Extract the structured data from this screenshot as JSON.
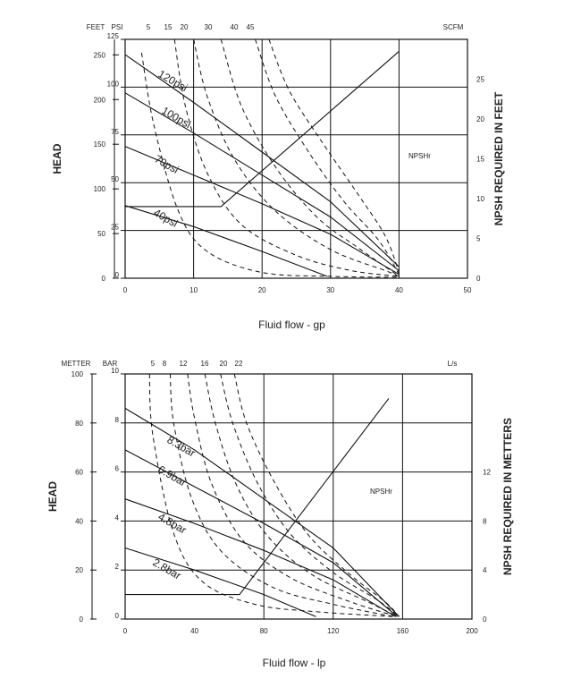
{
  "chart_data": [
    {
      "type": "line",
      "xlabel": "Fluid flow - gp",
      "ylabel_left": "HEAD",
      "ylabel_right": "NPSH REQUIRED IN FEET",
      "x_ticks": [
        "0",
        "10",
        "20",
        "30",
        "40",
        "50"
      ],
      "xlim": [
        0,
        50
      ],
      "ylim_psi": [
        0,
        125
      ],
      "head_unit": "FEET",
      "pressure_unit": "PSI",
      "air_unit": "SCFM",
      "head_ticks": [
        "250",
        "200",
        "150",
        "100",
        "50",
        "0"
      ],
      "head_values": [
        250,
        200,
        150,
        100,
        50,
        0
      ],
      "psi_ticks": [
        "125",
        "100",
        "75",
        "50",
        "25",
        "0"
      ],
      "psi_values": [
        125,
        100,
        75,
        50,
        25,
        0
      ],
      "npsh_ticks": [
        "25",
        "20",
        "15",
        "10",
        "5",
        "0"
      ],
      "npsh_values": [
        25,
        20,
        15,
        10,
        5,
        0
      ],
      "npsh_range": [
        0,
        30
      ],
      "air_ticks": [
        "5",
        "15",
        "20",
        "30",
        "40",
        "45"
      ],
      "npsh_label": "NPSHr",
      "series": [
        {
          "name": "120psi",
          "x": [
            0,
            10,
            20,
            30,
            40
          ],
          "y": [
            117,
            92,
            66,
            40,
            6
          ]
        },
        {
          "name": "100psi",
          "x": [
            0,
            10,
            20,
            30,
            40
          ],
          "y": [
            97,
            76,
            54,
            32,
            4
          ]
        },
        {
          "name": "70psi",
          "x": [
            0,
            10,
            20,
            30,
            40
          ],
          "y": [
            69,
            54,
            39,
            23,
            2
          ]
        },
        {
          "name": "40psi",
          "x": [
            0,
            10,
            20,
            29.5
          ],
          "y": [
            38,
            27,
            14,
            1
          ]
        }
      ],
      "air_curves": [
        {
          "x": [
            2.4,
            4.2,
            7.8,
            12,
            20,
            30,
            40
          ],
          "y": [
            118,
            80,
            35,
            14,
            3,
            1,
            0.5
          ]
        },
        {
          "x": [
            7.2,
            8.8,
            12,
            17,
            25,
            33,
            40
          ],
          "y": [
            125,
            90,
            55,
            28,
            12,
            4,
            1
          ]
        },
        {
          "x": [
            10,
            12,
            16,
            22,
            30,
            38,
            40
          ],
          "y": [
            125,
            95,
            62,
            35,
            15,
            4,
            1
          ]
        },
        {
          "x": [
            14,
            17,
            22,
            28,
            34,
            40
          ],
          "y": [
            125,
            90,
            58,
            32,
            16,
            1
          ]
        },
        {
          "x": [
            19,
            22,
            27,
            32,
            37,
            40
          ],
          "y": [
            125,
            95,
            65,
            40,
            20,
            2
          ]
        },
        {
          "x": [
            21,
            24,
            29,
            34,
            38,
            40
          ],
          "y": [
            125,
            98,
            70,
            44,
            22,
            3
          ]
        }
      ],
      "npsh_curve": {
        "x": [
          0,
          14,
          40
        ],
        "y": [
          9,
          9,
          28.5
        ]
      }
    },
    {
      "type": "line",
      "xlabel": "Fluid flow - lp",
      "ylabel_left": "HEAD",
      "ylabel_right": "NPSH REQUIRED IN METTERS",
      "x_ticks": [
        "0",
        "40",
        "80",
        "120",
        "160",
        "200"
      ],
      "xlim": [
        0,
        200
      ],
      "ylim_bar": [
        0,
        10
      ],
      "head_unit": "METTER",
      "pressure_unit": "BAR",
      "air_unit": "L/s",
      "head_ticks": [
        "100",
        "80",
        "60",
        "40",
        "20",
        "0"
      ],
      "head_values": [
        100,
        80,
        60,
        40,
        20,
        0
      ],
      "bar_ticks": [
        "10",
        "8",
        "6",
        "4",
        "2",
        "0"
      ],
      "bar_values": [
        10,
        8,
        6,
        4,
        2,
        0
      ],
      "npsh_ticks": [
        "12",
        "8",
        "4",
        "0"
      ],
      "npsh_values": [
        12,
        8,
        4,
        0
      ],
      "npsh_range": [
        0,
        20
      ],
      "air_ticks": [
        "5",
        "8",
        "12",
        "16",
        "20",
        "22"
      ],
      "npsh_label": "NPSHr",
      "series": [
        {
          "name": "8.3bar",
          "x": [
            0,
            40,
            80,
            120,
            158
          ],
          "y": [
            8.6,
            6.9,
            4.9,
            2.9,
            0.1
          ]
        },
        {
          "name": "6.9bar",
          "x": [
            0,
            40,
            80,
            120,
            157
          ],
          "y": [
            6.9,
            5.4,
            3.9,
            2.3,
            0.1
          ]
        },
        {
          "name": "4.8bar",
          "x": [
            0,
            40,
            80,
            120,
            156
          ],
          "y": [
            4.9,
            3.9,
            2.8,
            1.6,
            0.1
          ]
        },
        {
          "name": "2.8bar",
          "x": [
            0,
            40,
            80,
            110
          ],
          "y": [
            2.9,
            2.0,
            1.0,
            0.1
          ]
        }
      ],
      "air_curves": [
        {
          "x": [
            14,
            16,
            28,
            45,
            75,
            110,
            155
          ],
          "y": [
            10,
            7.5,
            3.5,
            1.5,
            0.6,
            0.3,
            0.1
          ]
        },
        {
          "x": [
            26,
            28,
            38,
            55,
            85,
            120,
            155
          ],
          "y": [
            10,
            8,
            5,
            2.8,
            1.3,
            0.6,
            0.1
          ]
        },
        {
          "x": [
            36,
            40,
            50,
            68,
            95,
            130,
            157
          ],
          "y": [
            10,
            8.2,
            5.5,
            3.2,
            1.7,
            0.7,
            0.1
          ]
        },
        {
          "x": [
            46,
            52,
            64,
            82,
            108,
            140,
            157
          ],
          "y": [
            10,
            8,
            5.5,
            3.4,
            1.8,
            0.7,
            0.1
          ]
        },
        {
          "x": [
            55,
            62,
            76,
            95,
            120,
            145,
            158
          ],
          "y": [
            10,
            8,
            5.6,
            3.5,
            1.9,
            0.8,
            0.1
          ]
        },
        {
          "x": [
            63,
            70,
            86,
            106,
            130,
            150,
            158
          ],
          "y": [
            10,
            8,
            5.6,
            3.4,
            1.8,
            0.7,
            0.1
          ]
        }
      ],
      "npsh_curve": {
        "x": [
          0,
          66,
          152
        ],
        "y": [
          2,
          2,
          18
        ]
      }
    }
  ]
}
